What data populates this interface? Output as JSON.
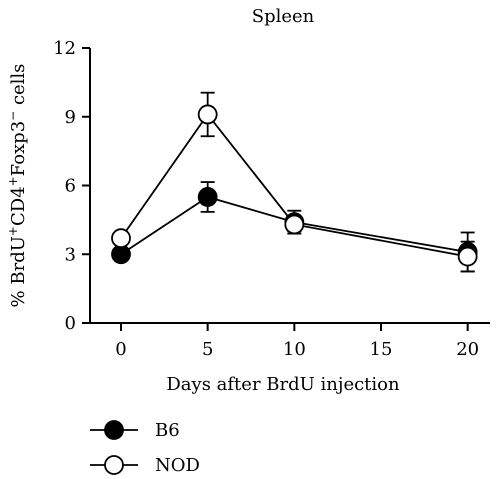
{
  "chart_data": {
    "type": "line",
    "title": "Spleen",
    "xlabel": "Days after BrdU injection",
    "ylabel_parts": [
      "% BrdU",
      "+",
      "CD4",
      "+",
      "Foxp3",
      "−",
      " cells"
    ],
    "ylabel": "% BrdU+CD4+Foxp3− cells",
    "xlim": [
      -1.5,
      21
    ],
    "ylim": [
      0,
      12
    ],
    "x": [
      0,
      5,
      10,
      20
    ],
    "xticks": [
      0,
      5,
      10,
      15,
      20
    ],
    "yticks": [
      0,
      3,
      6,
      9,
      12
    ],
    "series": [
      {
        "name": "B6",
        "values": [
          3.0,
          5.5,
          4.4,
          3.1
        ],
        "errors": [
          0.0,
          0.65,
          0.5,
          0.85
        ],
        "marker": "filled",
        "color": "#000000"
      },
      {
        "name": "NOD",
        "values": [
          3.7,
          9.1,
          4.3,
          2.9
        ],
        "errors": [
          0.0,
          0.95,
          0.3,
          0.65
        ],
        "marker": "open",
        "color": "#000000"
      }
    ],
    "legend_position": "bottom-left",
    "grid": false
  }
}
